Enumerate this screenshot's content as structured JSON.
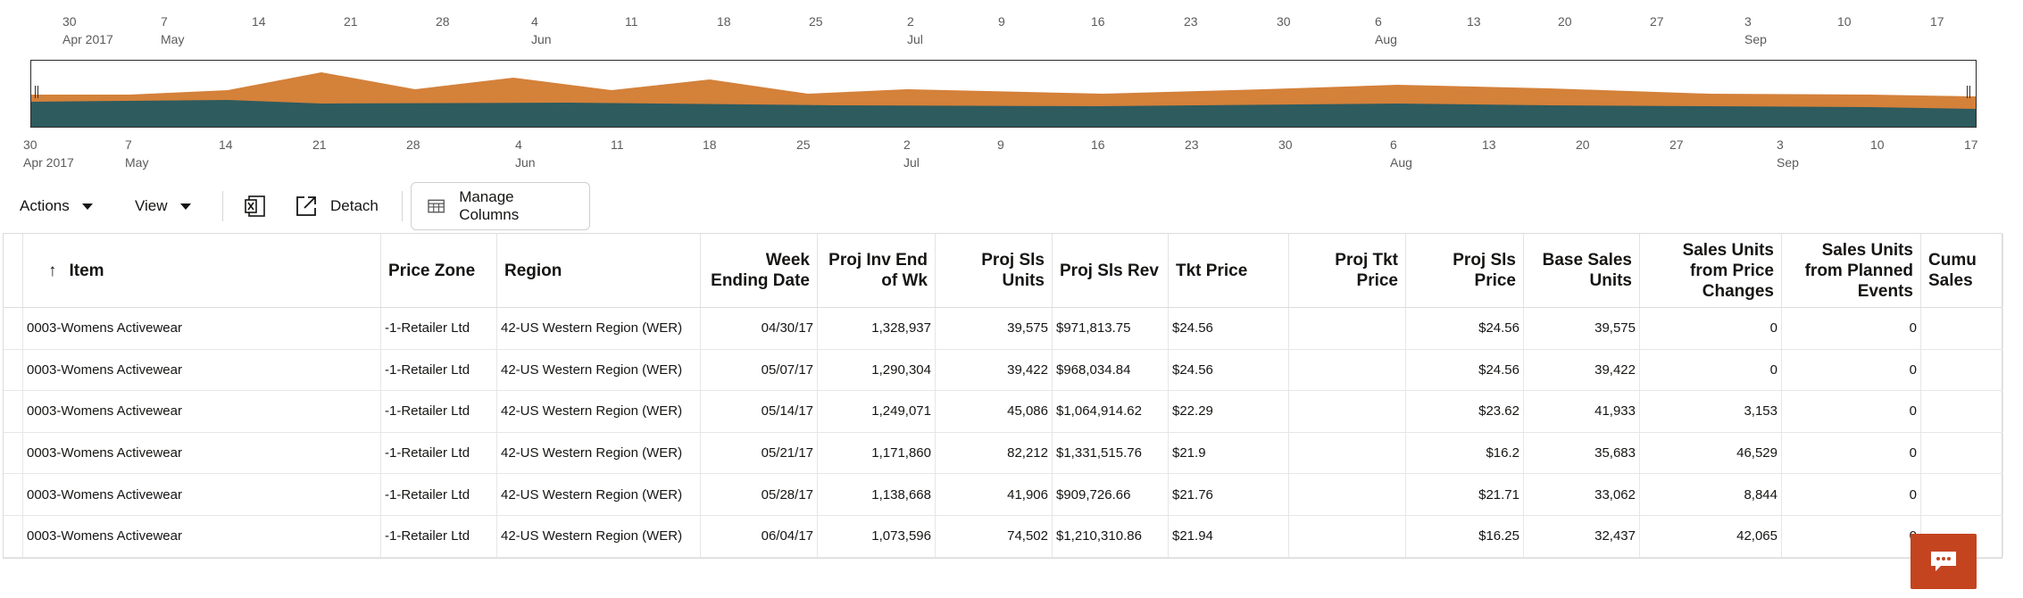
{
  "timeline": {
    "ticks": [
      {
        "day": "30",
        "sub": "Apr 2017"
      },
      {
        "day": "7",
        "sub": "May"
      },
      {
        "day": "14",
        "sub": ""
      },
      {
        "day": "21",
        "sub": ""
      },
      {
        "day": "28",
        "sub": ""
      },
      {
        "day": "4",
        "sub": "Jun"
      },
      {
        "day": "11",
        "sub": ""
      },
      {
        "day": "18",
        "sub": ""
      },
      {
        "day": "25",
        "sub": ""
      },
      {
        "day": "2",
        "sub": "Jul"
      },
      {
        "day": "9",
        "sub": ""
      },
      {
        "day": "16",
        "sub": ""
      },
      {
        "day": "23",
        "sub": ""
      },
      {
        "day": "30",
        "sub": ""
      },
      {
        "day": "6",
        "sub": "Aug"
      },
      {
        "day": "13",
        "sub": ""
      },
      {
        "day": "20",
        "sub": ""
      },
      {
        "day": "27",
        "sub": ""
      },
      {
        "day": "3",
        "sub": "Sep"
      },
      {
        "day": "10",
        "sub": ""
      },
      {
        "day": "17",
        "sub": ""
      }
    ],
    "colors": {
      "series_top": "#d4813a",
      "series_bottom": "#2e5b5e"
    }
  },
  "toolbar": {
    "actions_label": "Actions",
    "view_label": "View",
    "detach_label": "Detach",
    "manage_columns_label": "Manage Columns"
  },
  "table": {
    "sort_indicator": "↑",
    "columns": [
      "Item",
      "Price Zone",
      "Region",
      "Week Ending Date",
      "Proj Inv End of Wk",
      "Proj Sls Units",
      "Proj Sls Rev",
      "Tkt Price",
      "Proj Tkt Price",
      "Proj Sls Price",
      "Base Sales Units",
      "Sales Units from Price Changes",
      "Sales Units from Planned Events",
      "Cumu Sales"
    ],
    "rows": [
      [
        "0003-Womens Activewear",
        "-1-Retailer Ltd",
        "42-US Western Region (WER)",
        "04/30/17",
        "1,328,937",
        "39,575",
        "$971,813.75",
        "$24.56",
        "",
        "$24.56",
        "39,575",
        "0",
        "0",
        ""
      ],
      [
        "0003-Womens Activewear",
        "-1-Retailer Ltd",
        "42-US Western Region (WER)",
        "05/07/17",
        "1,290,304",
        "39,422",
        "$968,034.84",
        "$24.56",
        "",
        "$24.56",
        "39,422",
        "0",
        "0",
        ""
      ],
      [
        "0003-Womens Activewear",
        "-1-Retailer Ltd",
        "42-US Western Region (WER)",
        "05/14/17",
        "1,249,071",
        "45,086",
        "$1,064,914.62",
        "$22.29",
        "",
        "$23.62",
        "41,933",
        "3,153",
        "0",
        ""
      ],
      [
        "0003-Womens Activewear",
        "-1-Retailer Ltd",
        "42-US Western Region (WER)",
        "05/21/17",
        "1,171,860",
        "82,212",
        "$1,331,515.76",
        "$21.9",
        "",
        "$16.2",
        "35,683",
        "46,529",
        "0",
        ""
      ],
      [
        "0003-Womens Activewear",
        "-1-Retailer Ltd",
        "42-US Western Region (WER)",
        "05/28/17",
        "1,138,668",
        "41,906",
        "$909,726.66",
        "$21.76",
        "",
        "$21.71",
        "33,062",
        "8,844",
        "0",
        ""
      ],
      [
        "0003-Womens Activewear",
        "-1-Retailer Ltd",
        "42-US Western Region (WER)",
        "06/04/17",
        "1,073,596",
        "74,502",
        "$1,210,310.86",
        "$21.94",
        "",
        "$16.25",
        "32,437",
        "42,065",
        "0",
        ""
      ]
    ]
  }
}
